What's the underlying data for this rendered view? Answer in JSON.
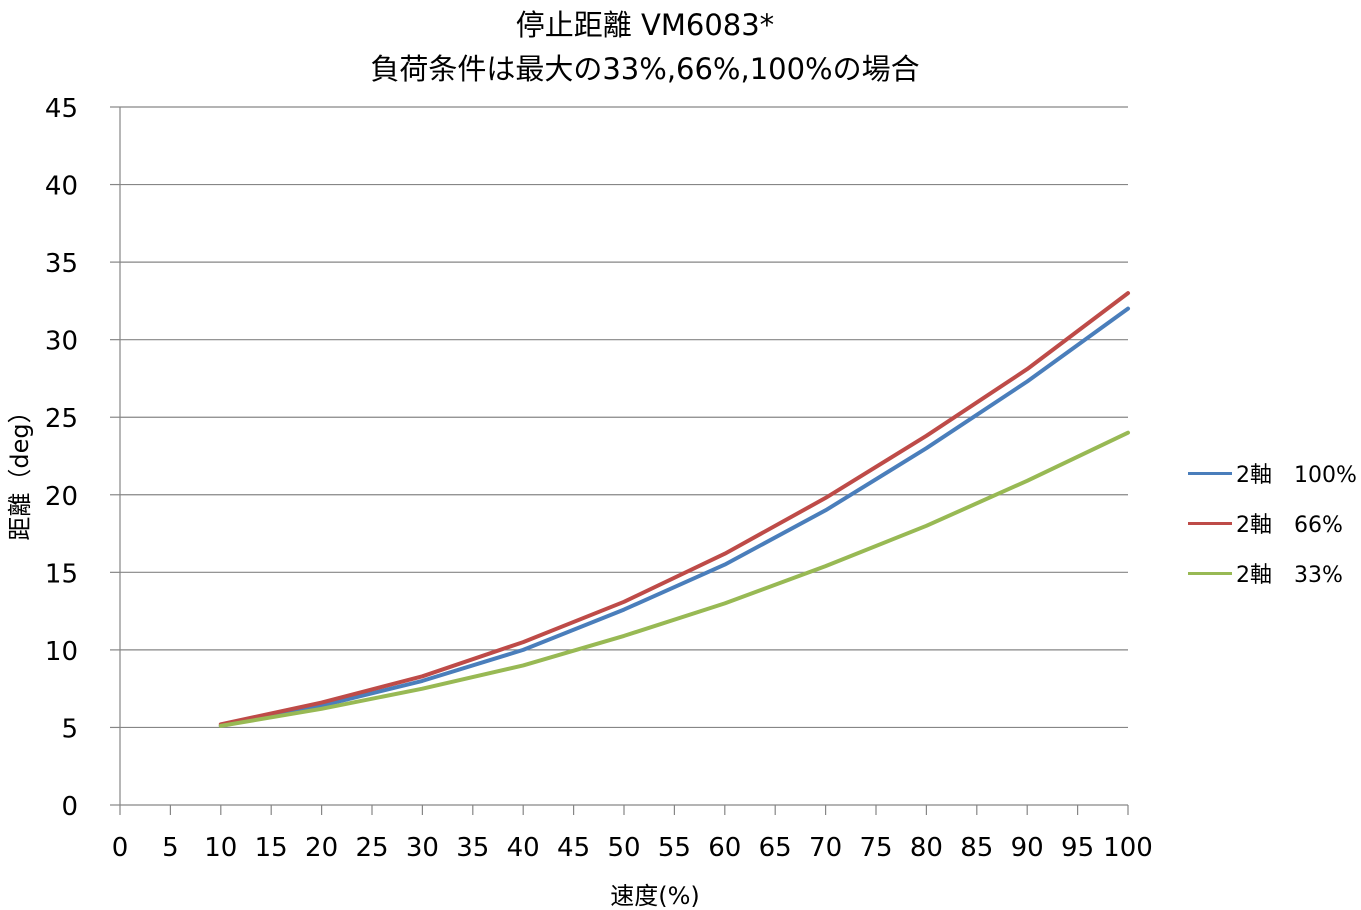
{
  "chart_data": {
    "type": "line",
    "title": "停止距離 VM6083*",
    "subtitle": "負荷条件は最大の33%,66%,100%の場合",
    "xlabel": "速度(%)",
    "ylabel": "距離（deg）",
    "x_ticks": [
      "0",
      "5",
      "10",
      "15",
      "20",
      "25",
      "30",
      "35",
      "40",
      "45",
      "50",
      "55",
      "60",
      "65",
      "70",
      "75",
      "80",
      "85",
      "90",
      "95",
      "100"
    ],
    "y_ticks": [
      "0",
      "5",
      "10",
      "15",
      "20",
      "25",
      "30",
      "35",
      "40",
      "45"
    ],
    "xlim": [
      0,
      100
    ],
    "ylim": [
      0,
      45
    ],
    "grid": "horizontal",
    "legend_position": "right",
    "x": [
      10,
      20,
      30,
      40,
      50,
      60,
      70,
      80,
      90,
      100
    ],
    "series": [
      {
        "name": "2軸　100%",
        "color": "#4a7ebb",
        "values": [
          5.1,
          6.4,
          8.0,
          10.0,
          12.6,
          15.5,
          19.0,
          23.0,
          27.3,
          32.0
        ]
      },
      {
        "name": "2軸　66%",
        "color": "#be4b48",
        "values": [
          5.2,
          6.6,
          8.3,
          10.5,
          13.1,
          16.2,
          19.8,
          23.8,
          28.1,
          33.0
        ]
      },
      {
        "name": "2軸　33%",
        "color": "#98b954",
        "values": [
          5.1,
          6.2,
          7.5,
          9.0,
          10.9,
          13.0,
          15.4,
          18.0,
          20.9,
          24.0
        ]
      }
    ]
  }
}
